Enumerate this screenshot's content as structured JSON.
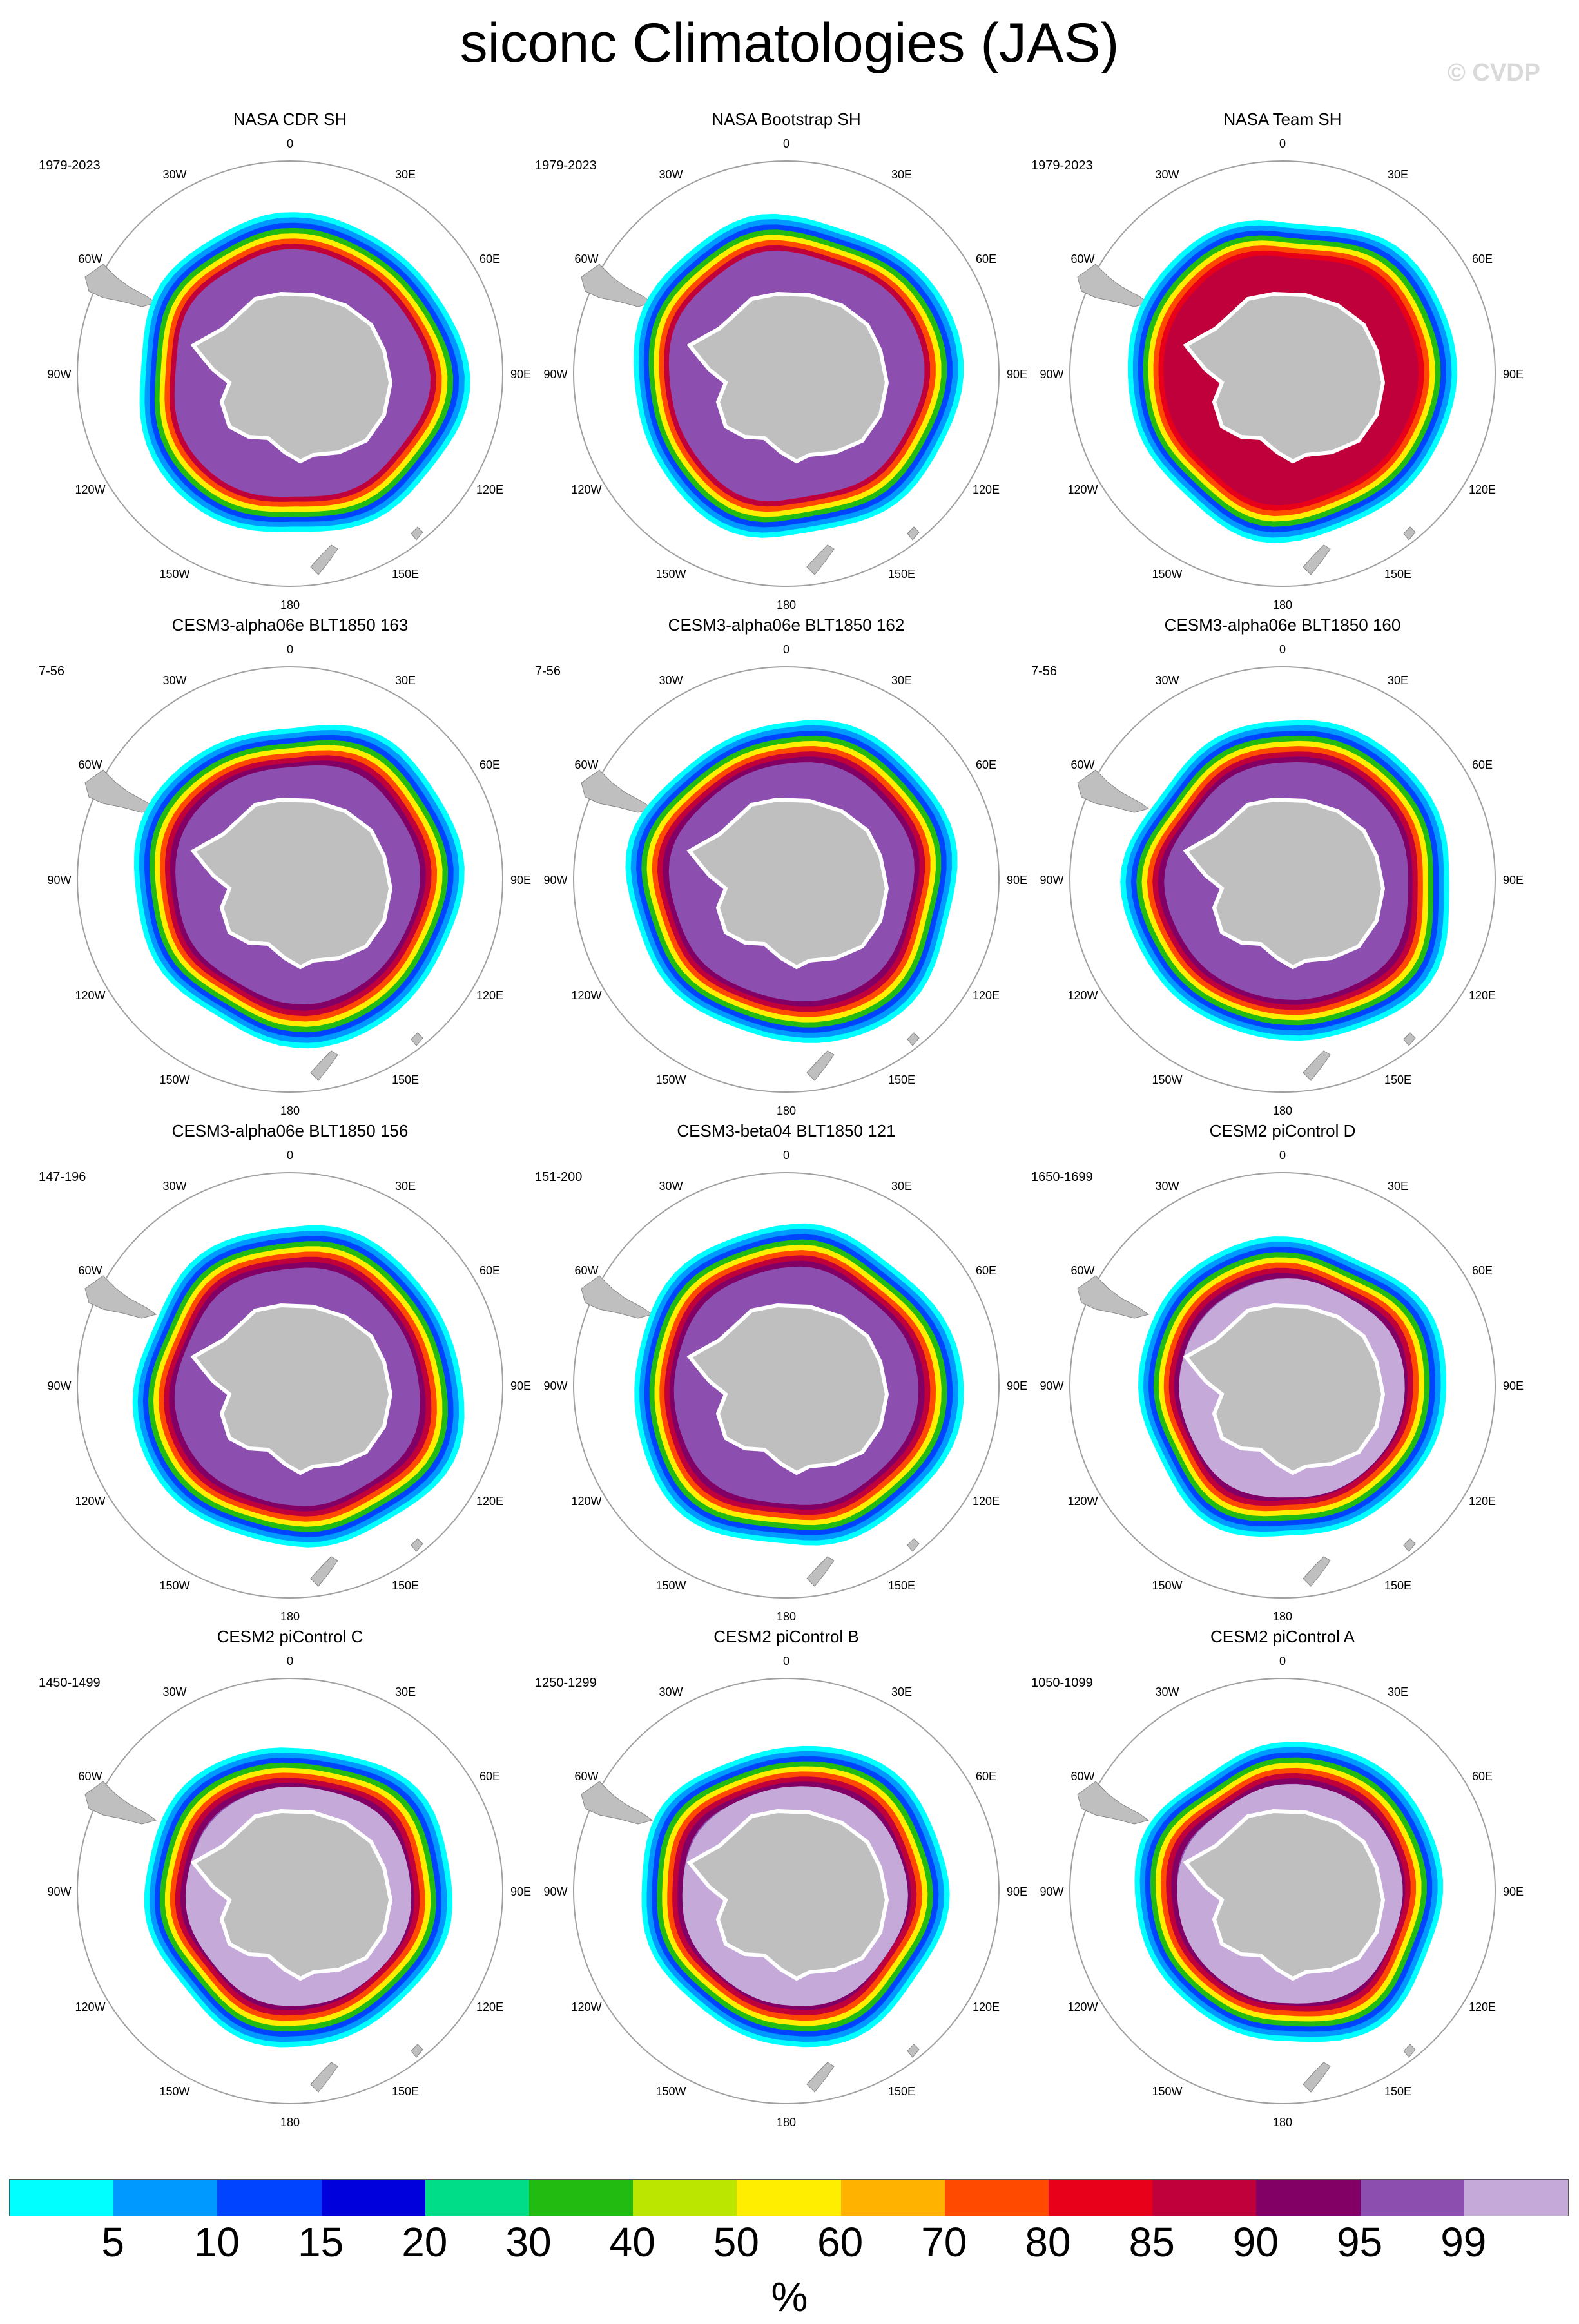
{
  "title": "siconc Climatologies (JAS)",
  "copyright": "© CVDP",
  "colors": {
    "land": "#bfbfbf",
    "land_stroke": "#888888",
    "circle": "#a0a0a0"
  },
  "lon_labels": {
    "top": "0",
    "r30": "30E",
    "r60": "60E",
    "r90": "90E",
    "r120": "120E",
    "r150": "150E",
    "bottom": "180",
    "l150": "150W",
    "l120": "120W",
    "l90": "90W",
    "l60": "60W",
    "l30": "30W"
  },
  "panels": [
    {
      "title": "NASA CDR SH",
      "period": "1979-2023",
      "style": "obs"
    },
    {
      "title": "NASA Bootstrap SH",
      "period": "1979-2023",
      "style": "obs"
    },
    {
      "title": "NASA Team SH",
      "period": "1979-2023",
      "style": "team"
    },
    {
      "title": "CESM3-alpha06e BLT1850 163",
      "period": "7-56",
      "style": "model"
    },
    {
      "title": "CESM3-alpha06e BLT1850 162",
      "period": "7-56",
      "style": "model"
    },
    {
      "title": "CESM3-alpha06e BLT1850 160",
      "period": "7-56",
      "style": "model"
    },
    {
      "title": "CESM3-alpha06e BLT1850 156",
      "period": "147-196",
      "style": "model"
    },
    {
      "title": "CESM3-beta04 BLT1850 121",
      "period": "151-200",
      "style": "model"
    },
    {
      "title": "CESM2 piControl D",
      "period": "1650-1699",
      "style": "cesm2"
    },
    {
      "title": "CESM2 piControl C",
      "period": "1450-1499",
      "style": "cesm2"
    },
    {
      "title": "CESM2 piControl B",
      "period": "1250-1299",
      "style": "cesm2"
    },
    {
      "title": "CESM2 piControl A",
      "period": "1050-1099",
      "style": "cesm2"
    }
  ],
  "colorbar": {
    "unit": "%",
    "labels": [
      "5",
      "10",
      "15",
      "20",
      "30",
      "40",
      "50",
      "60",
      "70",
      "80",
      "85",
      "90",
      "95",
      "99"
    ],
    "colors": [
      "#00ffff",
      "#0099ff",
      "#0044ff",
      "#0000dd",
      "#00dd88",
      "#22bb11",
      "#bbe600",
      "#ffee00",
      "#ffb300",
      "#ff4a00",
      "#e8001a",
      "#c0003a",
      "#820066",
      "#8c4fb0",
      "#c5a9d9"
    ]
  }
}
